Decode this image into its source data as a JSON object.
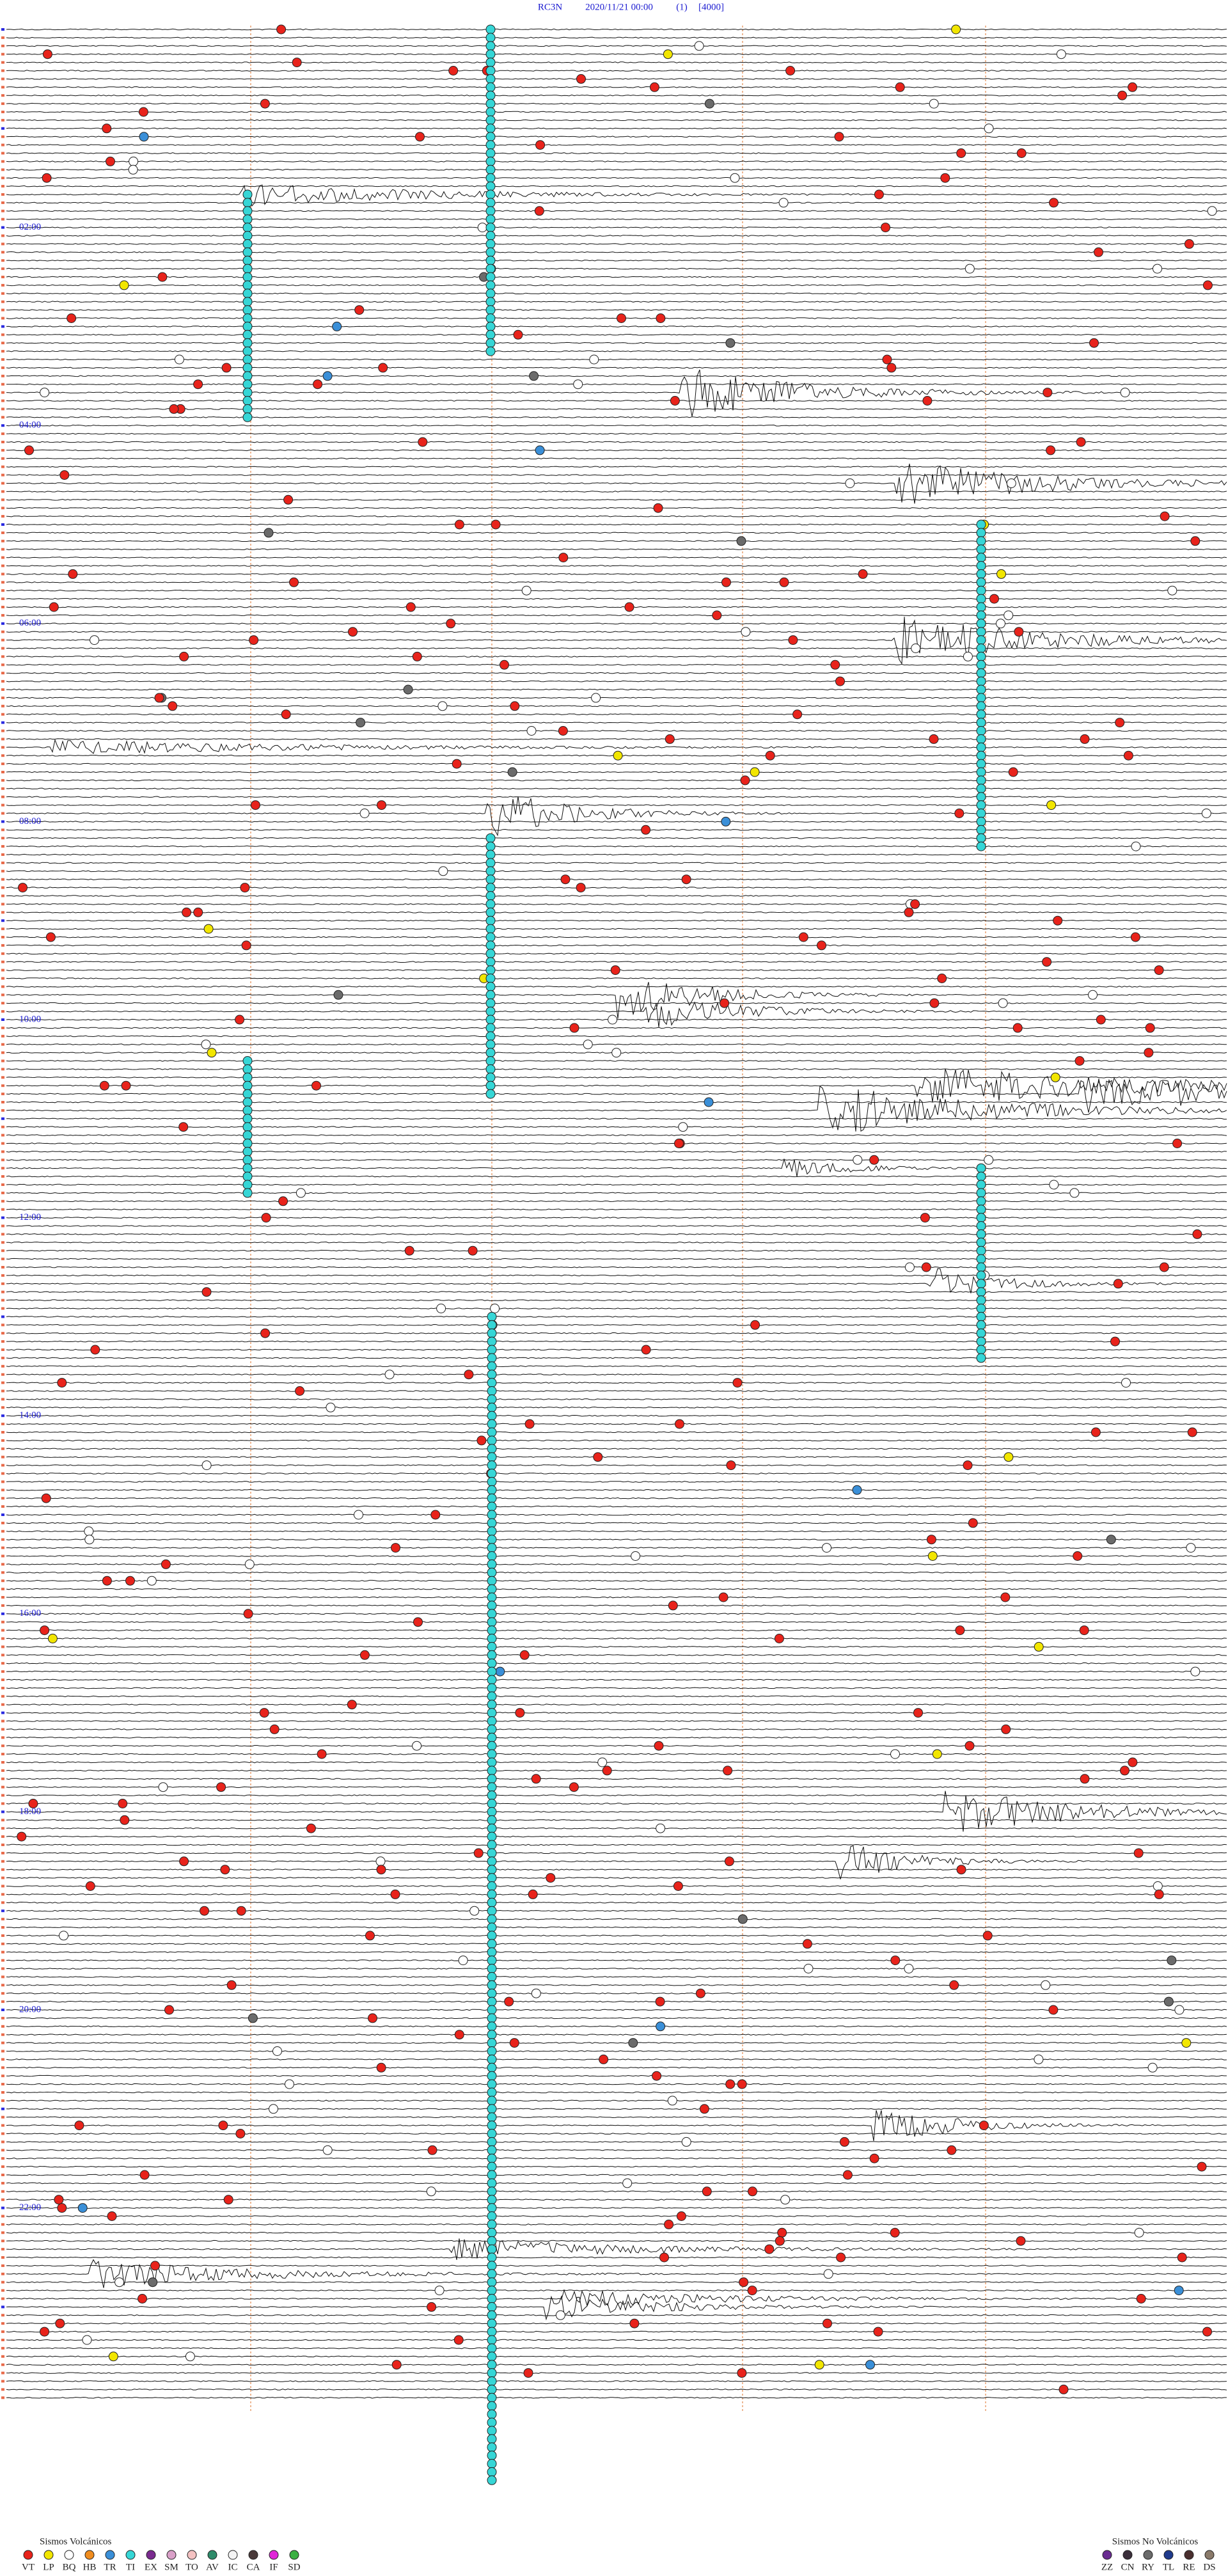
{
  "header": {
    "station": "RC3N",
    "datetime": "2020/11/21 00:00",
    "channel": "(1)",
    "scale": "[4000]"
  },
  "hour_labels": [
    "02:00",
    "04:00",
    "06:00",
    "08:00",
    "10:00",
    "12:00",
    "14:00",
    "16:00",
    "18:00",
    "20:00",
    "22:00"
  ],
  "legend": {
    "volcanic": {
      "title": "Sismos Volcánicos",
      "items": [
        {
          "code": "VT",
          "color": "#e8231b"
        },
        {
          "code": "LP",
          "color": "#f2e600"
        },
        {
          "code": "BQ",
          "color": "#ffffff"
        },
        {
          "code": "HB",
          "color": "#f08c1e"
        },
        {
          "code": "TR",
          "color": "#3a8fd8"
        },
        {
          "code": "TI",
          "color": "#36d6d6"
        },
        {
          "code": "EX",
          "color": "#7a2b8f"
        },
        {
          "code": "SM",
          "color": "#d9a0c8"
        },
        {
          "code": "TO",
          "color": "#f4c2c2"
        },
        {
          "code": "AV",
          "color": "#2e8b6a"
        },
        {
          "code": "IC",
          "color": "#f4f4f4"
        },
        {
          "code": "CA",
          "color": "#4a3a3a"
        },
        {
          "code": "IF",
          "color": "#e026d8"
        },
        {
          "code": "SD",
          "color": "#3cb043"
        }
      ]
    },
    "non_volcanic": {
      "title": "Sismos No Volcánicos",
      "items": [
        {
          "code": "ZZ",
          "color": "#6a2c91"
        },
        {
          "code": "CN",
          "color": "#3b2f3b"
        },
        {
          "code": "RY",
          "color": "#6b6b6b"
        },
        {
          "code": "TL",
          "color": "#1f3a8c"
        },
        {
          "code": "RE",
          "color": "#4a2f2f"
        },
        {
          "code": "DS",
          "color": "#8a7a6a"
        }
      ]
    }
  }
}
